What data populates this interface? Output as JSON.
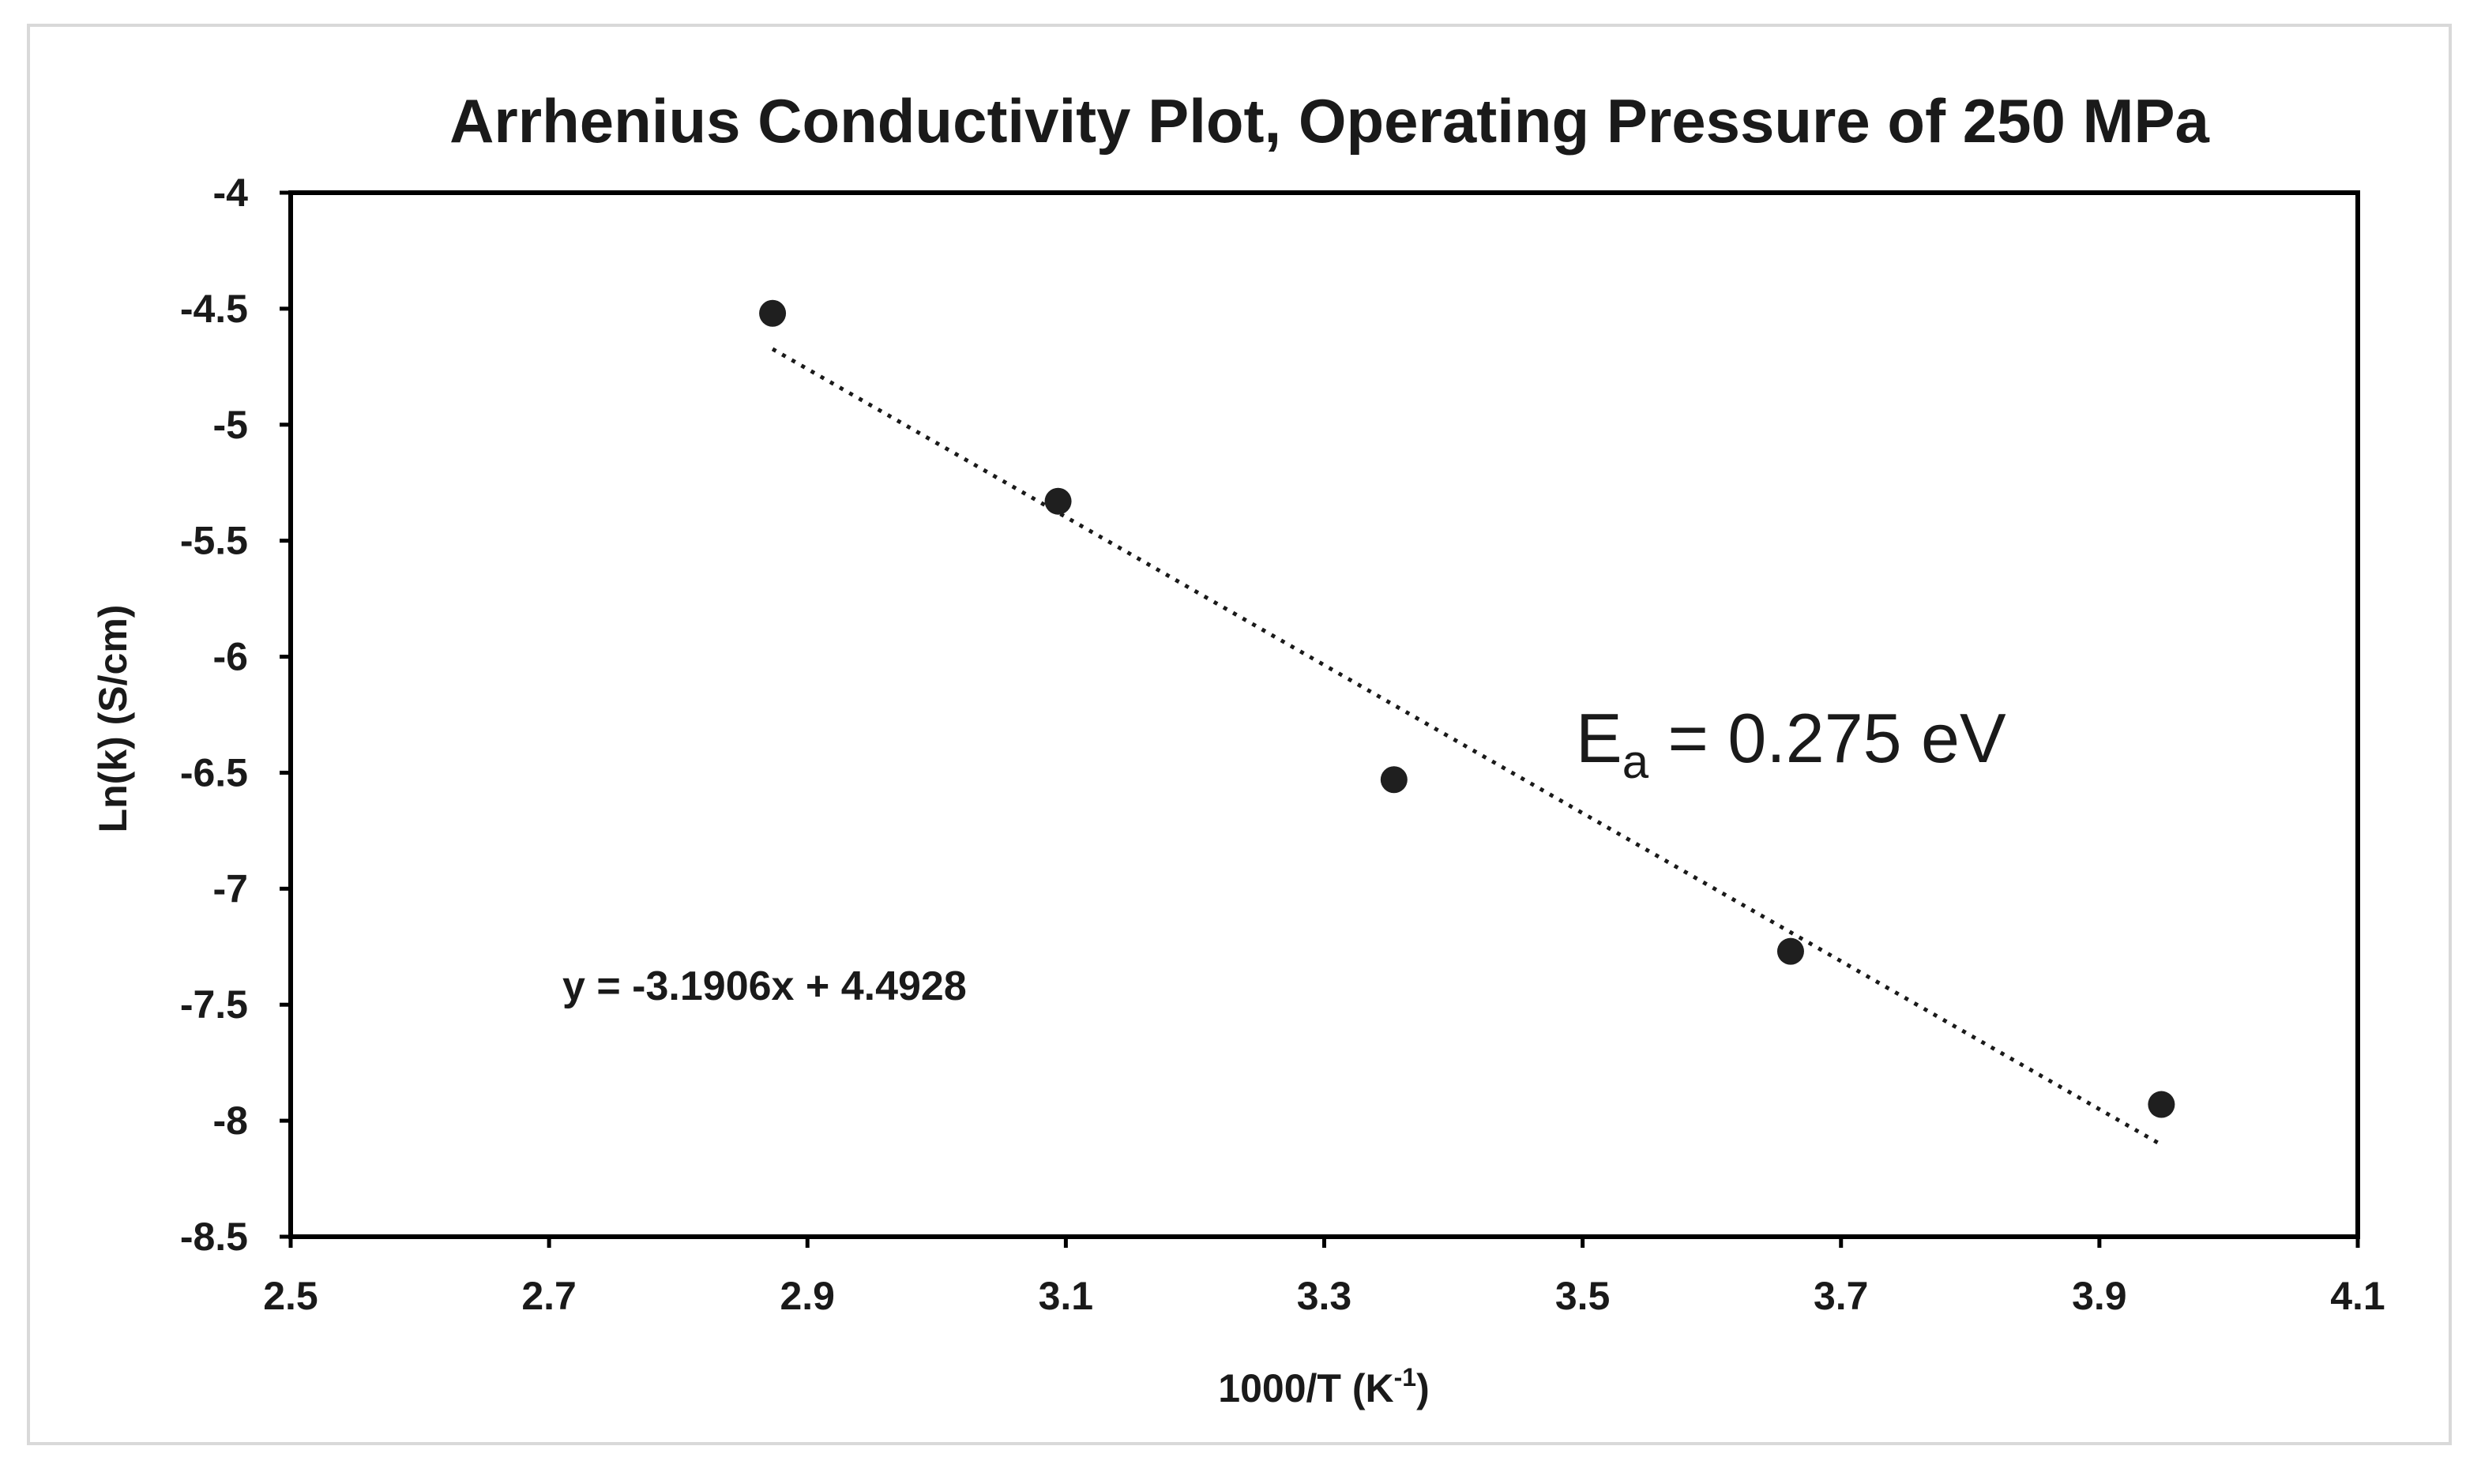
{
  "chart_data": {
    "type": "scatter",
    "title": "Arrhenius Conductivity Plot, Operating Pressure of 250 MPa",
    "xlabel_main": "1000/T (K",
    "xlabel_sup": "-1",
    "xlabel_close": ")",
    "ylabel": "Ln(k) (S/cm)",
    "xlim": [
      2.5,
      4.1
    ],
    "ylim": [
      -8.5,
      -4
    ],
    "x_ticks": [
      "2.5",
      "2.7",
      "2.9",
      "3.1",
      "3.3",
      "3.5",
      "3.7",
      "3.9",
      "4.1"
    ],
    "y_ticks": [
      "-4",
      "-4.5",
      "-5",
      "-5.5",
      "-6",
      "-6.5",
      "-7",
      "-7.5",
      "-8",
      "-8.5"
    ],
    "grid": false,
    "series": [
      {
        "x": [
          2.873,
          3.094,
          3.354,
          3.661,
          3.948
        ],
        "y": [
          -4.52,
          -5.33,
          -6.53,
          -7.27,
          -7.93
        ],
        "marker_color": "#1f1f1f"
      }
    ],
    "trendline": {
      "slope": -3.1906,
      "intercept": 4.4928,
      "x_range": [
        2.873,
        3.948
      ],
      "style": "dotted",
      "color": "#1a1a1a"
    },
    "annotations": {
      "equation": "y = -3.1906x + 4.4928",
      "ea_main": "E",
      "ea_sub": "a",
      "ea_value": " = 0.275 eV"
    }
  }
}
